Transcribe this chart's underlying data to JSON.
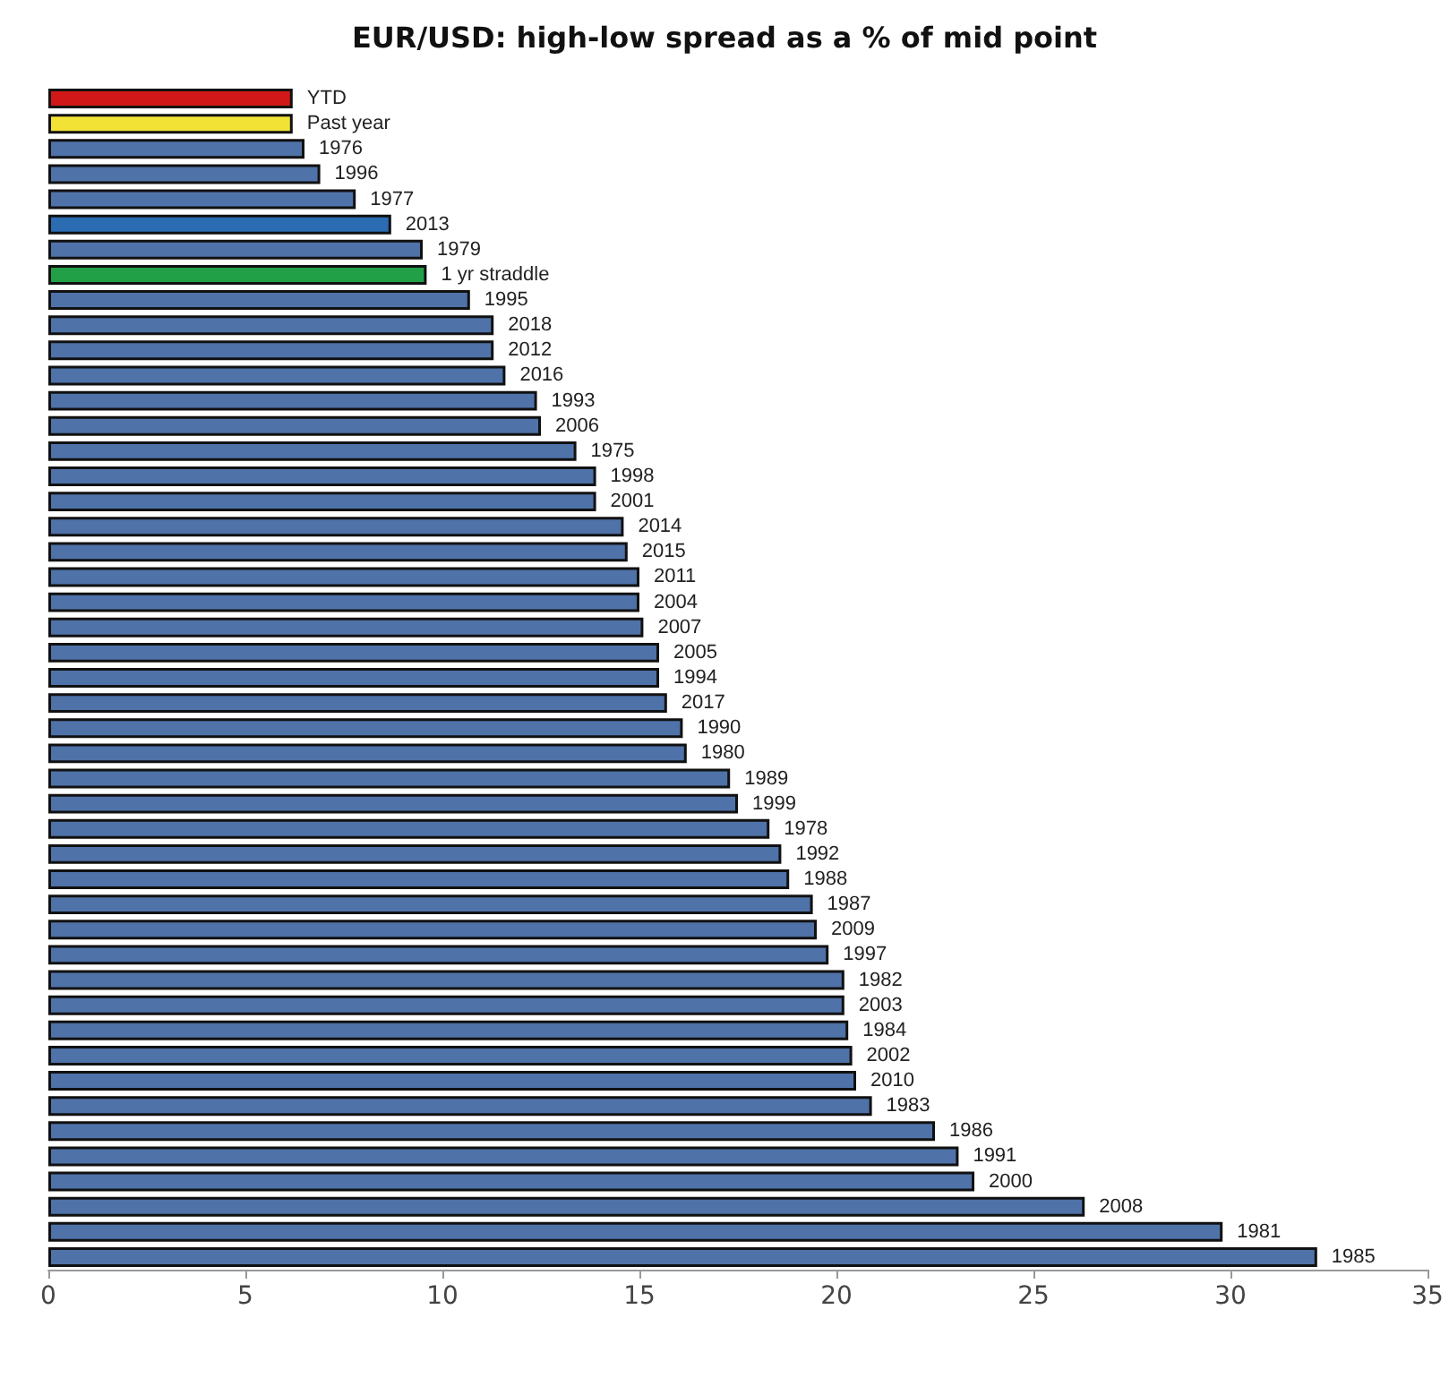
{
  "chart_data": {
    "type": "bar",
    "orientation": "horizontal",
    "title": "EUR/USD: high-low spread as a % of mid point",
    "categories": [
      "YTD",
      "Past year",
      "1976",
      "1996",
      "1977",
      "2013",
      "1979",
      "1 yr straddle",
      "1995",
      "2018",
      "2012",
      "2016",
      "1993",
      "2006",
      "1975",
      "1998",
      "2001",
      "2014",
      "2015",
      "2011",
      "2004",
      "2007",
      "2005",
      "1994",
      "2017",
      "1990",
      "1980",
      "1989",
      "1999",
      "1978",
      "1992",
      "1988",
      "1987",
      "2009",
      "1997",
      "1982",
      "2003",
      "1984",
      "2002",
      "2010",
      "1983",
      "1986",
      "1991",
      "2000",
      "2008",
      "1981",
      "1985"
    ],
    "values": [
      6.2,
      6.2,
      6.5,
      6.9,
      7.8,
      8.7,
      9.5,
      9.6,
      10.7,
      11.3,
      11.3,
      11.6,
      12.4,
      12.5,
      13.4,
      13.9,
      13.9,
      14.6,
      14.7,
      15.0,
      15.0,
      15.1,
      15.5,
      15.5,
      15.7,
      16.1,
      16.2,
      17.3,
      17.5,
      18.3,
      18.6,
      18.8,
      19.4,
      19.5,
      19.8,
      20.2,
      20.2,
      20.3,
      20.4,
      20.5,
      20.9,
      22.5,
      23.1,
      23.5,
      26.3,
      29.8,
      32.2
    ],
    "colors": [
      "#d01818",
      "#f2e236",
      "#4f72a8",
      "#4f72a8",
      "#4f72a8",
      "#2b6cb3",
      "#4f72a8",
      "#22a048",
      "#4f72a8",
      "#4f72a8",
      "#4f72a8",
      "#4f72a8",
      "#4f72a8",
      "#4f72a8",
      "#4f72a8",
      "#4f72a8",
      "#4f72a8",
      "#4f72a8",
      "#4f72a8",
      "#4f72a8",
      "#4f72a8",
      "#4f72a8",
      "#4f72a8",
      "#4f72a8",
      "#4f72a8",
      "#4f72a8",
      "#4f72a8",
      "#4f72a8",
      "#4f72a8",
      "#4f72a8",
      "#4f72a8",
      "#4f72a8",
      "#4f72a8",
      "#4f72a8",
      "#4f72a8",
      "#4f72a8",
      "#4f72a8",
      "#4f72a8",
      "#4f72a8",
      "#4f72a8",
      "#4f72a8",
      "#4f72a8",
      "#4f72a8",
      "#4f72a8",
      "#4f72a8",
      "#4f72a8",
      "#4f72a8"
    ],
    "xlim": [
      0,
      35
    ],
    "xticks": [
      0,
      5,
      10,
      15,
      20,
      25,
      30,
      35
    ],
    "tick_labels": "x",
    "grid": false
  }
}
